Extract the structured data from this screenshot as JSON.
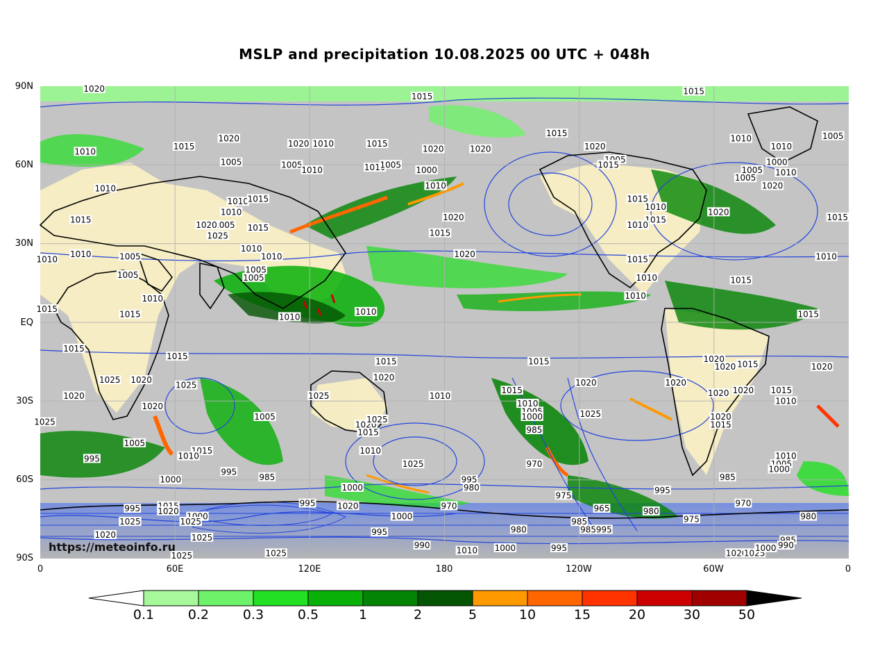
{
  "title": "MSLP and precipitation 10.08.2025 00 UTC + 048h",
  "watermark": "https://meteoinfo.ru",
  "lat_ticks": [
    "90N",
    "60N",
    "30N",
    "EQ",
    "30S",
    "60S",
    "90S"
  ],
  "lon_ticks": [
    "0",
    "60E",
    "120E",
    "180",
    "120W",
    "60W",
    "0"
  ],
  "colorbar": {
    "labels": [
      "0.1",
      "0.2",
      "0.3",
      "0.5",
      "1",
      "2",
      "5",
      "10",
      "15",
      "20",
      "30",
      "50"
    ],
    "colors": [
      "#a6f89a",
      "#6ef26a",
      "#22e022",
      "#08b008",
      "#048404",
      "#035403",
      "#ff9900",
      "#ff6600",
      "#ff3300",
      "#cc0000",
      "#a00000",
      "#000000"
    ]
  },
  "map_colors": {
    "ocean_gray": "#a6a6a6",
    "light_gray": "#d8d8d8",
    "land_yellow": "#fff8cc",
    "isobar_blue": "#2244dd",
    "coast": "#000000"
  },
  "isobar_labels": [
    {
      "text": "1020",
      "lat": 89,
      "lon": 24
    },
    {
      "text": "1015",
      "lat": 86,
      "lon": 170
    },
    {
      "text": "1015",
      "lat": 88,
      "lon": 291
    },
    {
      "text": "1010",
      "lat": 65,
      "lon": 20
    },
    {
      "text": "1015",
      "lat": 67,
      "lon": 64
    },
    {
      "text": "1020",
      "lat": 70,
      "lon": 84
    },
    {
      "text": "1020",
      "lat": 68,
      "lon": 115
    },
    {
      "text": "1010",
      "lat": 68,
      "lon": 126
    },
    {
      "text": "1015",
      "lat": 68,
      "lon": 150
    },
    {
      "text": "1020",
      "lat": 66,
      "lon": 175
    },
    {
      "text": "1020",
      "lat": 66,
      "lon": 196
    },
    {
      "text": "1015",
      "lat": 72,
      "lon": 230
    },
    {
      "text": "1020",
      "lat": 67,
      "lon": 247
    },
    {
      "text": "1005",
      "lat": 62,
      "lon": 256
    },
    {
      "text": "1010",
      "lat": 70,
      "lon": 312
    },
    {
      "text": "1010",
      "lat": 67,
      "lon": 330
    },
    {
      "text": "1005",
      "lat": 71,
      "lon": 353
    },
    {
      "text": "1005",
      "lat": 61,
      "lon": 85
    },
    {
      "text": "1005",
      "lat": 60,
      "lon": 112
    },
    {
      "text": "1010",
      "lat": 58,
      "lon": 121
    },
    {
      "text": "1010",
      "lat": 59,
      "lon": 149
    },
    {
      "text": "1005",
      "lat": 60,
      "lon": 156
    },
    {
      "text": "1000",
      "lat": 58,
      "lon": 172
    },
    {
      "text": "1015",
      "lat": 60,
      "lon": 253
    },
    {
      "text": "1005",
      "lat": 58,
      "lon": 317
    },
    {
      "text": "1000",
      "lat": 61,
      "lon": 328
    },
    {
      "text": "1010",
      "lat": 57,
      "lon": 332
    },
    {
      "text": "1010",
      "lat": 51,
      "lon": 29
    },
    {
      "text": "1010",
      "lat": 52,
      "lon": 176
    },
    {
      "text": "1005",
      "lat": 55,
      "lon": 314
    },
    {
      "text": "1020",
      "lat": 52,
      "lon": 326
    },
    {
      "text": "1010",
      "lat": 46,
      "lon": 88
    },
    {
      "text": "1015",
      "lat": 47,
      "lon": 97
    },
    {
      "text": "1010",
      "lat": 42,
      "lon": 85
    },
    {
      "text": "1015",
      "lat": 39,
      "lon": 18
    },
    {
      "text": "1020",
      "lat": 40,
      "lon": 184
    },
    {
      "text": "1015",
      "lat": 47,
      "lon": 266
    },
    {
      "text": "1010",
      "lat": 44,
      "lon": 274
    },
    {
      "text": "1015",
      "lat": 39,
      "lon": 274
    },
    {
      "text": "1010",
      "lat": 37,
      "lon": 266
    },
    {
      "text": "1020",
      "lat": 42,
      "lon": 302
    },
    {
      "text": "1015",
      "lat": 40,
      "lon": 355
    },
    {
      "text": "1005",
      "lat": 37,
      "lon": 82
    },
    {
      "text": "1020",
      "lat": 37,
      "lon": 74
    },
    {
      "text": "1025",
      "lat": 33,
      "lon": 79
    },
    {
      "text": "1015",
      "lat": 36,
      "lon": 97
    },
    {
      "text": "1015",
      "lat": 34,
      "lon": 178
    },
    {
      "text": "1010",
      "lat": 26,
      "lon": 18
    },
    {
      "text": "1010",
      "lat": 28,
      "lon": 94
    },
    {
      "text": "1010",
      "lat": 25,
      "lon": 103
    },
    {
      "text": "1020",
      "lat": 26,
      "lon": 189
    },
    {
      "text": "1010",
      "lat": 25,
      "lon": 350
    },
    {
      "text": "1010",
      "lat": 24,
      "lon": 3
    },
    {
      "text": "1005",
      "lat": 25,
      "lon": 40
    },
    {
      "text": "1005",
      "lat": 20,
      "lon": 96
    },
    {
      "text": "1005",
      "lat": 18,
      "lon": 39
    },
    {
      "text": "1005",
      "lat": 17,
      "lon": 95
    },
    {
      "text": "1015",
      "lat": 24,
      "lon": 266
    },
    {
      "text": "1010",
      "lat": 17,
      "lon": 270
    },
    {
      "text": "1015",
      "lat": 16,
      "lon": 312
    },
    {
      "text": "1010",
      "lat": 9,
      "lon": 50
    },
    {
      "text": "1010",
      "lat": 10,
      "lon": 265
    },
    {
      "text": "1015",
      "lat": 5,
      "lon": 3
    },
    {
      "text": "1015",
      "lat": 3,
      "lon": 40
    },
    {
      "text": "1010",
      "lat": 2,
      "lon": 111
    },
    {
      "text": "1010",
      "lat": 4,
      "lon": 145
    },
    {
      "text": "1015",
      "lat": 3,
      "lon": 342
    },
    {
      "text": "1015",
      "lat": -10,
      "lon": 15
    },
    {
      "text": "1015",
      "lat": -13,
      "lon": 61
    },
    {
      "text": "1015",
      "lat": -15,
      "lon": 154
    },
    {
      "text": "1015",
      "lat": -15,
      "lon": 222
    },
    {
      "text": "1020",
      "lat": -14,
      "lon": 300
    },
    {
      "text": "1020",
      "lat": -17,
      "lon": 305
    },
    {
      "text": "1015",
      "lat": -16,
      "lon": 315
    },
    {
      "text": "1020",
      "lat": -17,
      "lon": 348
    },
    {
      "text": "1025",
      "lat": -22,
      "lon": 31
    },
    {
      "text": "1020",
      "lat": -22,
      "lon": 45
    },
    {
      "text": "1025",
      "lat": -24,
      "lon": 65
    },
    {
      "text": "1020",
      "lat": -21,
      "lon": 153
    },
    {
      "text": "1020",
      "lat": -23,
      "lon": 243
    },
    {
      "text": "1020",
      "lat": -23,
      "lon": 283
    },
    {
      "text": "1020",
      "lat": -26,
      "lon": 313
    },
    {
      "text": "1020",
      "lat": -27,
      "lon": 302
    },
    {
      "text": "1015",
      "lat": -26,
      "lon": 330
    },
    {
      "text": "1020",
      "lat": -28,
      "lon": 15
    },
    {
      "text": "1025",
      "lat": -28,
      "lon": 124
    },
    {
      "text": "1010",
      "lat": -28,
      "lon": 178
    },
    {
      "text": "1015",
      "lat": -26,
      "lon": 210
    },
    {
      "text": "1010",
      "lat": -31,
      "lon": 217
    },
    {
      "text": "1010",
      "lat": -30,
      "lon": 332
    },
    {
      "text": "1020",
      "lat": -32,
      "lon": 50
    },
    {
      "text": "1005",
      "lat": -36,
      "lon": 100
    },
    {
      "text": "1025",
      "lat": -35,
      "lon": 245
    },
    {
      "text": "1005",
      "lat": -34,
      "lon": 219
    },
    {
      "text": "1000",
      "lat": -36,
      "lon": 219
    },
    {
      "text": "1020",
      "lat": -36,
      "lon": 303
    },
    {
      "text": "1025",
      "lat": -38,
      "lon": 2
    },
    {
      "text": "1020",
      "lat": -39,
      "lon": 145
    },
    {
      "text": "1025",
      "lat": -37,
      "lon": 150
    },
    {
      "text": "1015",
      "lat": -39,
      "lon": 303
    },
    {
      "text": "985",
      "lat": -41,
      "lon": 220
    },
    {
      "text": "1015",
      "lat": -42,
      "lon": 146
    },
    {
      "text": "1005",
      "lat": -46,
      "lon": 42
    },
    {
      "text": "1015",
      "lat": -49,
      "lon": 72
    },
    {
      "text": "1010",
      "lat": -49,
      "lon": 147
    },
    {
      "text": "1010",
      "lat": -51,
      "lon": 66
    },
    {
      "text": "1025",
      "lat": -54,
      "lon": 166
    },
    {
      "text": "970",
      "lat": -54,
      "lon": 220
    },
    {
      "text": "1010",
      "lat": -51,
      "lon": 332
    },
    {
      "text": "1005",
      "lat": -54,
      "lon": 330
    },
    {
      "text": "1000",
      "lat": -56,
      "lon": 329
    },
    {
      "text": "995",
      "lat": -52,
      "lon": 23
    },
    {
      "text": "995",
      "lat": -57,
      "lon": 84
    },
    {
      "text": "985",
      "lat": -59,
      "lon": 101
    },
    {
      "text": "1000",
      "lat": -60,
      "lon": 58
    },
    {
      "text": "995",
      "lat": -60,
      "lon": 191
    },
    {
      "text": "980",
      "lat": -63,
      "lon": 192
    },
    {
      "text": "1000",
      "lat": -63,
      "lon": 139
    },
    {
      "text": "985",
      "lat": -59,
      "lon": 306
    },
    {
      "text": "975",
      "lat": -66,
      "lon": 233
    },
    {
      "text": "995",
      "lat": -64,
      "lon": 277
    },
    {
      "text": "970",
      "lat": -69,
      "lon": 313
    },
    {
      "text": "995",
      "lat": -69,
      "lon": 119
    },
    {
      "text": "1020",
      "lat": -70,
      "lon": 137
    },
    {
      "text": "970",
      "lat": -70,
      "lon": 182
    },
    {
      "text": "965",
      "lat": -71,
      "lon": 250
    },
    {
      "text": "995",
      "lat": -71,
      "lon": 41
    },
    {
      "text": "1015",
      "lat": -70,
      "lon": 57
    },
    {
      "text": "1020",
      "lat": -72,
      "lon": 57
    },
    {
      "text": "980",
      "lat": -72,
      "lon": 272
    },
    {
      "text": "975",
      "lat": -75,
      "lon": 290
    },
    {
      "text": "1000",
      "lat": -74,
      "lon": 70
    },
    {
      "text": "1000",
      "lat": -74,
      "lon": 161
    },
    {
      "text": "1025",
      "lat": -76,
      "lon": 40
    },
    {
      "text": "1025",
      "lat": -76,
      "lon": 67
    },
    {
      "text": "985",
      "lat": -76,
      "lon": 240
    },
    {
      "text": "980",
      "lat": -79,
      "lon": 213
    },
    {
      "text": "985",
      "lat": -79,
      "lon": 244
    },
    {
      "text": "995",
      "lat": -79,
      "lon": 251
    },
    {
      "text": "995",
      "lat": -80,
      "lon": 151
    },
    {
      "text": "980",
      "lat": -74,
      "lon": 342
    },
    {
      "text": "1020",
      "lat": -81,
      "lon": 29
    },
    {
      "text": "1025",
      "lat": -82,
      "lon": 72
    },
    {
      "text": "985",
      "lat": -83,
      "lon": 333
    },
    {
      "text": "990",
      "lat": -85,
      "lon": 170
    },
    {
      "text": "1000",
      "lat": -86,
      "lon": 207
    },
    {
      "text": "995",
      "lat": -86,
      "lon": 231
    },
    {
      "text": "1010",
      "lat": -87,
      "lon": 190
    },
    {
      "text": "1025",
      "lat": -88,
      "lon": 105
    },
    {
      "text": "1020",
      "lat": -88,
      "lon": 310
    },
    {
      "text": "1025",
      "lat": -88,
      "lon": 318
    },
    {
      "text": "1000",
      "lat": -86,
      "lon": 323
    },
    {
      "text": "990",
      "lat": -85,
      "lon": 332
    },
    {
      "text": "1025",
      "lat": -89,
      "lon": 63
    }
  ]
}
